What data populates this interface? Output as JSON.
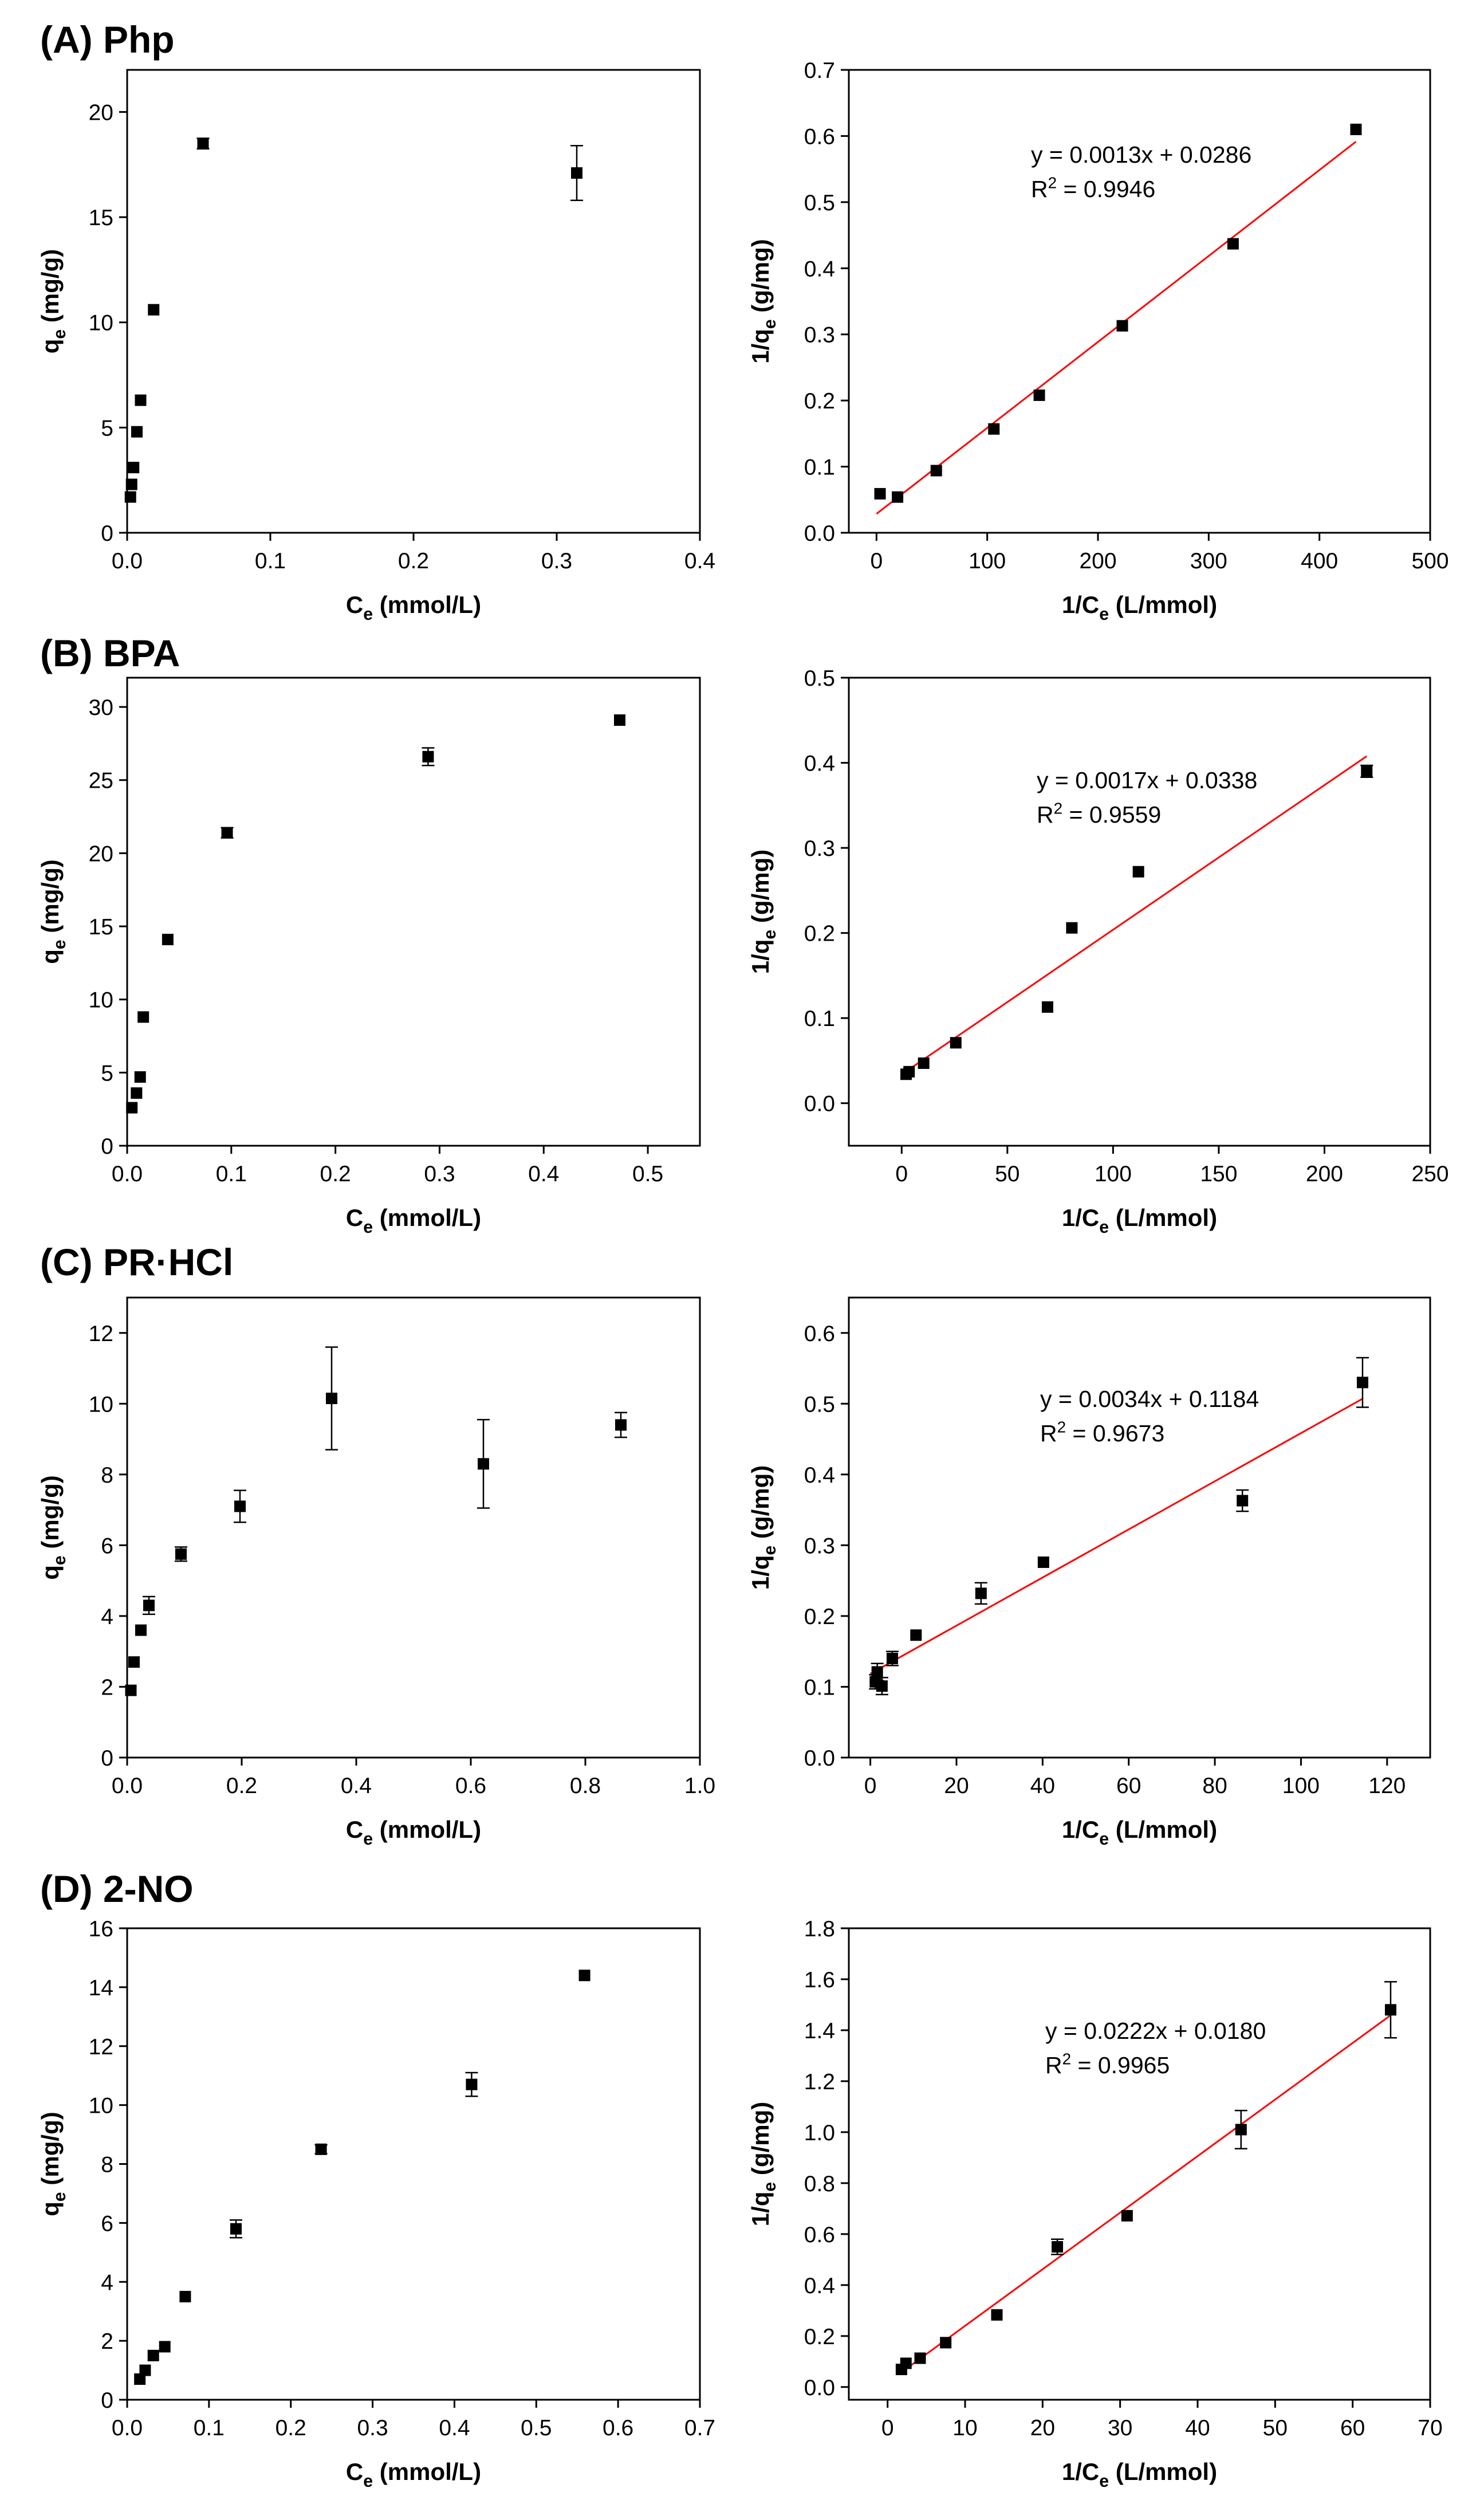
{
  "rows": [
    {
      "label": "(A) Php"
    },
    {
      "label": "(B) BPA"
    },
    {
      "label": "(C) PR·HCl"
    },
    {
      "label": "(D) 2-NO"
    }
  ],
  "chart_data": [
    {
      "type": "scatter",
      "panel": "A-left",
      "xlabel": "C_e (mmol/L)",
      "ylabel": "q_e (mg/g)",
      "xlim": [
        0,
        0.4
      ],
      "ylim": [
        0,
        22
      ],
      "xticks": [
        0,
        0.1,
        0.2,
        0.3,
        0.4
      ],
      "xtick_labels": [
        "0.0",
        "0.1",
        "0.2",
        "0.3",
        "0.4"
      ],
      "yticks": [
        0,
        5,
        10,
        15,
        20
      ],
      "ytick_labels": [
        "0",
        "5",
        "10",
        "15",
        "20"
      ],
      "points": [
        {
          "x": 0.0023,
          "y": 1.7,
          "err": 0
        },
        {
          "x": 0.0031,
          "y": 2.3,
          "err": 0
        },
        {
          "x": 0.0045,
          "y": 3.1,
          "err": 0
        },
        {
          "x": 0.0068,
          "y": 4.8,
          "err": 0
        },
        {
          "x": 0.0094,
          "y": 6.3,
          "err": 0
        },
        {
          "x": 0.0185,
          "y": 10.6,
          "err": 0
        },
        {
          "x": 0.053,
          "y": 18.5,
          "err": 0.25
        },
        {
          "x": 0.314,
          "y": 17.1,
          "err": 1.3
        }
      ],
      "grid": false
    },
    {
      "type": "scatter",
      "panel": "A-right",
      "xlabel": "1/C_e (L/mmol)",
      "ylabel": "1/q_e (g/mg)",
      "xlim": [
        -25,
        500
      ],
      "ylim": [
        0,
        0.7
      ],
      "xticks": [
        0,
        100,
        200,
        300,
        400,
        500
      ],
      "xtick_labels": [
        "0",
        "100",
        "200",
        "300",
        "400",
        "500"
      ],
      "yticks": [
        0,
        0.1,
        0.2,
        0.3,
        0.4,
        0.5,
        0.6,
        0.7
      ],
      "ytick_labels": [
        "0.0",
        "0.1",
        "0.2",
        "0.3",
        "0.4",
        "0.5",
        "0.6",
        "0.7"
      ],
      "points": [
        {
          "x": 3.2,
          "y": 0.059,
          "err": 0
        },
        {
          "x": 19,
          "y": 0.054,
          "err": 0
        },
        {
          "x": 54,
          "y": 0.094,
          "err": 0
        },
        {
          "x": 106,
          "y": 0.157,
          "err": 0
        },
        {
          "x": 147,
          "y": 0.208,
          "err": 0
        },
        {
          "x": 222,
          "y": 0.313,
          "err": 0
        },
        {
          "x": 322,
          "y": 0.437,
          "err": 0
        },
        {
          "x": 433,
          "y": 0.61,
          "err": 0
        }
      ],
      "fit": {
        "slope": 0.0013,
        "intercept": 0.0286,
        "x_range": [
          0,
          433
        ]
      },
      "annotation": [
        "y = 0.0013x + 0.0286",
        "R2 = 0.9946"
      ],
      "grid": false
    },
    {
      "type": "scatter",
      "panel": "B-left",
      "xlabel": "C_e (mmol/L)",
      "ylabel": "q_e (mg/g)",
      "xlim": [
        0,
        0.55
      ],
      "ylim": [
        0,
        32
      ],
      "xticks": [
        0,
        0.1,
        0.2,
        0.3,
        0.4,
        0.5
      ],
      "xtick_labels": [
        "0.0",
        "0.1",
        "0.2",
        "0.3",
        "0.4",
        "0.5"
      ],
      "yticks": [
        0,
        5,
        10,
        15,
        20,
        25,
        30
      ],
      "ytick_labels": [
        "0",
        "5",
        "10",
        "15",
        "20",
        "25",
        "30"
      ],
      "points": [
        {
          "x": 0.0045,
          "y": 2.6,
          "err": 0
        },
        {
          "x": 0.009,
          "y": 3.6,
          "err": 0
        },
        {
          "x": 0.0125,
          "y": 4.7,
          "err": 0
        },
        {
          "x": 0.0155,
          "y": 8.8,
          "err": 0
        },
        {
          "x": 0.039,
          "y": 14.1,
          "err": 0
        },
        {
          "x": 0.096,
          "y": 21.4,
          "err": 0.35
        },
        {
          "x": 0.289,
          "y": 26.6,
          "err": 0.6
        },
        {
          "x": 0.473,
          "y": 29.1,
          "err": 0
        }
      ],
      "grid": false
    },
    {
      "type": "scatter",
      "panel": "B-right",
      "xlabel": "1/C_e (L/mmol)",
      "ylabel": "1/q_e (g/mg)",
      "xlim": [
        -25,
        250
      ],
      "ylim": [
        -0.05,
        0.5
      ],
      "xticks": [
        0,
        50,
        100,
        150,
        200,
        250
      ],
      "xtick_labels": [
        "0",
        "50",
        "100",
        "150",
        "200",
        "250"
      ],
      "yticks": [
        0,
        0.1,
        0.2,
        0.3,
        0.4,
        0.5
      ],
      "ytick_labels": [
        "0.0",
        "0.1",
        "0.2",
        "0.3",
        "0.4",
        "0.5"
      ],
      "points": [
        {
          "x": 2.1,
          "y": 0.034,
          "err": 0
        },
        {
          "x": 3.5,
          "y": 0.037,
          "err": 0
        },
        {
          "x": 10.4,
          "y": 0.047,
          "err": 0
        },
        {
          "x": 25.6,
          "y": 0.071,
          "err": 0
        },
        {
          "x": 69,
          "y": 0.113,
          "err": 0
        },
        {
          "x": 80.5,
          "y": 0.206,
          "err": 0
        },
        {
          "x": 112,
          "y": 0.272,
          "err": 0
        },
        {
          "x": 220,
          "y": 0.39,
          "err": 0.007
        }
      ],
      "fit": {
        "slope": 0.0017,
        "intercept": 0.0338,
        "x_range": [
          0,
          220
        ]
      },
      "annotation": [
        "y = 0.0017x + 0.0338",
        "R2 = 0.9559"
      ],
      "grid": false
    },
    {
      "type": "scatter",
      "panel": "C-left",
      "xlabel": "C_e (mmol/L)",
      "ylabel": "q_e (mg/g)",
      "xlim": [
        0,
        1.0
      ],
      "ylim": [
        0,
        13
      ],
      "xticks": [
        0,
        0.2,
        0.4,
        0.6,
        0.8,
        1.0
      ],
      "xtick_labels": [
        "0.0",
        "0.2",
        "0.4",
        "0.6",
        "0.8",
        "1.0"
      ],
      "yticks": [
        0,
        2,
        4,
        6,
        8,
        10,
        12
      ],
      "ytick_labels": [
        "0",
        "2",
        "4",
        "6",
        "8",
        "10",
        "12"
      ],
      "points": [
        {
          "x": 0.0065,
          "y": 1.9,
          "err": 0
        },
        {
          "x": 0.012,
          "y": 2.7,
          "err": 0
        },
        {
          "x": 0.024,
          "y": 3.6,
          "err": 0
        },
        {
          "x": 0.038,
          "y": 4.3,
          "err": 0.25
        },
        {
          "x": 0.094,
          "y": 5.75,
          "err": 0.2
        },
        {
          "x": 0.197,
          "y": 7.1,
          "err": 0.45
        },
        {
          "x": 0.357,
          "y": 10.15,
          "err": 1.45
        },
        {
          "x": 0.622,
          "y": 8.3,
          "err": 1.25
        },
        {
          "x": 0.862,
          "y": 9.4,
          "err": 0.35
        }
      ],
      "grid": false
    },
    {
      "type": "scatter",
      "panel": "C-right",
      "xlabel": "1/C_e (L/mmol)",
      "ylabel": "1/q_e (g/mg)",
      "xlim": [
        -5,
        130
      ],
      "ylim": [
        0,
        0.65
      ],
      "xticks": [
        0,
        20,
        40,
        60,
        80,
        100,
        120
      ],
      "xtick_labels": [
        "0",
        "20",
        "40",
        "60",
        "80",
        "100",
        "120"
      ],
      "yticks": [
        0,
        0.1,
        0.2,
        0.3,
        0.4,
        0.5,
        0.6
      ],
      "ytick_labels": [
        "0.0",
        "0.1",
        "0.2",
        "0.3",
        "0.4",
        "0.5",
        "0.6"
      ],
      "points": [
        {
          "x": 1.16,
          "y": 0.107,
          "err": 0.01
        },
        {
          "x": 1.6,
          "y": 0.121,
          "err": 0.012
        },
        {
          "x": 2.7,
          "y": 0.101,
          "err": 0.012
        },
        {
          "x": 5.1,
          "y": 0.14,
          "err": 0.01
        },
        {
          "x": 10.6,
          "y": 0.173,
          "err": 0
        },
        {
          "x": 25.7,
          "y": 0.232,
          "err": 0.015
        },
        {
          "x": 40.2,
          "y": 0.276,
          "err": 0
        },
        {
          "x": 86.4,
          "y": 0.363,
          "err": 0.015
        },
        {
          "x": 114.3,
          "y": 0.53,
          "err": 0.035
        }
      ],
      "fit": {
        "slope": 0.0034,
        "intercept": 0.1184,
        "x_range": [
          0,
          114.3
        ]
      },
      "annotation": [
        "y = 0.0034x + 0.1184",
        "R2 = 0.9673"
      ],
      "grid": false
    },
    {
      "type": "scatter",
      "panel": "D-left",
      "xlabel": "C_e (mmol/L)",
      "ylabel": "q_e (mg/g)",
      "xlim": [
        0,
        0.7
      ],
      "ylim": [
        0,
        16
      ],
      "xticks": [
        0,
        0.1,
        0.2,
        0.3,
        0.4,
        0.5,
        0.6,
        0.7
      ],
      "xtick_labels": [
        "0.0",
        "0.1",
        "0.2",
        "0.3",
        "0.4",
        "0.5",
        "0.6",
        "0.7"
      ],
      "yticks": [
        0,
        2,
        4,
        6,
        8,
        10,
        12,
        14,
        16
      ],
      "ytick_labels": [
        "0",
        "2",
        "4",
        "6",
        "8",
        "10",
        "12",
        "14",
        "16"
      ],
      "points": [
        {
          "x": 0.0155,
          "y": 0.7,
          "err": 0
        },
        {
          "x": 0.022,
          "y": 1.0,
          "err": 0
        },
        {
          "x": 0.032,
          "y": 1.5,
          "err": 0
        },
        {
          "x": 0.046,
          "y": 1.8,
          "err": 0
        },
        {
          "x": 0.071,
          "y": 3.5,
          "err": 0
        },
        {
          "x": 0.133,
          "y": 5.8,
          "err": 0.3
        },
        {
          "x": 0.237,
          "y": 8.5,
          "err": 0.15
        },
        {
          "x": 0.421,
          "y": 10.7,
          "err": 0.4
        },
        {
          "x": 0.559,
          "y": 14.4,
          "err": 0
        }
      ],
      "grid": false
    },
    {
      "type": "scatter",
      "panel": "D-right",
      "xlabel": "1/C_e (L/mmol)",
      "ylabel": "1/q_e (g/mg)",
      "xlim": [
        -5,
        70
      ],
      "ylim": [
        -0.05,
        1.8
      ],
      "xticks": [
        0,
        10,
        20,
        30,
        40,
        50,
        60,
        70
      ],
      "xtick_labels": [
        "0",
        "10",
        "20",
        "30",
        "40",
        "50",
        "60",
        "70"
      ],
      "yticks": [
        0,
        0.2,
        0.4,
        0.6,
        0.8,
        1.0,
        1.2,
        1.4,
        1.6,
        1.8
      ],
      "ytick_labels": [
        "0.0",
        "0.2",
        "0.4",
        "0.6",
        "0.8",
        "1.0",
        "1.2",
        "1.4",
        "1.6",
        "1.8"
      ],
      "points": [
        {
          "x": 1.79,
          "y": 0.069,
          "err": 0
        },
        {
          "x": 2.37,
          "y": 0.093,
          "err": 0
        },
        {
          "x": 4.2,
          "y": 0.113,
          "err": 0
        },
        {
          "x": 7.5,
          "y": 0.174,
          "err": 0
        },
        {
          "x": 14.1,
          "y": 0.283,
          "err": 0
        },
        {
          "x": 21.9,
          "y": 0.55,
          "err": 0.03
        },
        {
          "x": 30.9,
          "y": 0.672,
          "err": 0
        },
        {
          "x": 45.6,
          "y": 1.01,
          "err": 0.075
        },
        {
          "x": 64.9,
          "y": 1.48,
          "err": 0.11
        }
      ],
      "fit": {
        "slope": 0.0222,
        "intercept": 0.018,
        "x_range": [
          1.79,
          64.9
        ]
      },
      "annotation": [
        "y = 0.0222x + 0.0180",
        "R2 = 0.9965"
      ],
      "grid": false
    }
  ],
  "colors": {
    "points": "#000000",
    "axes": "#000000",
    "fit_line": "#ff0000"
  }
}
